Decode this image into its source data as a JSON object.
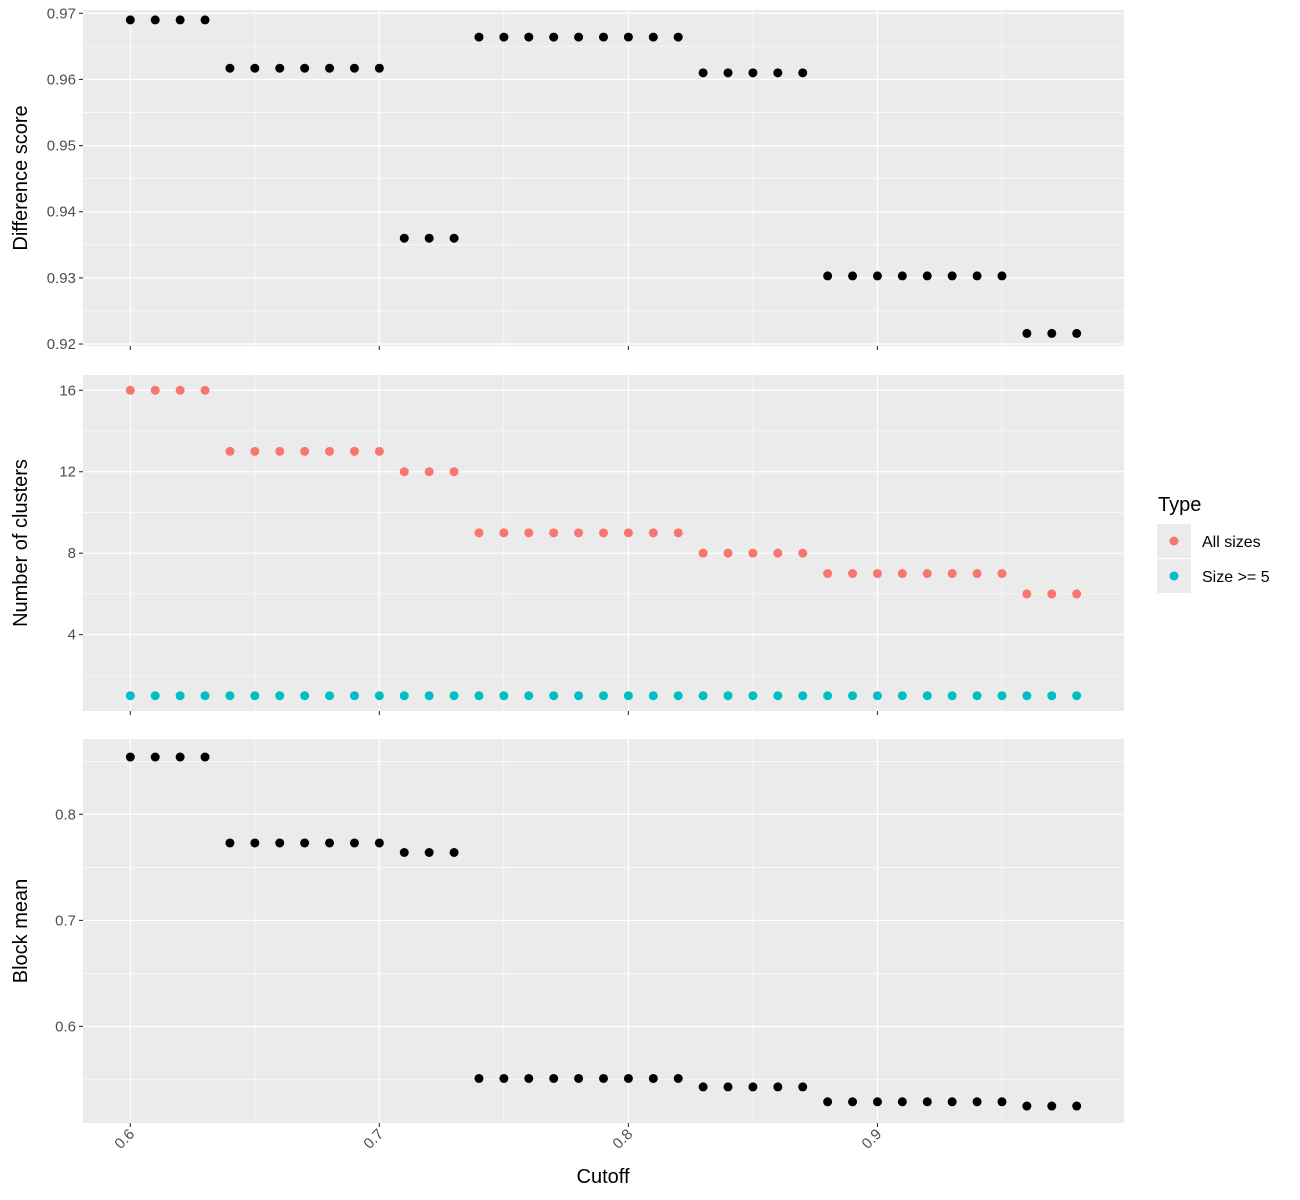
{
  "chart_data": {
    "type": "scatter",
    "xlabel": "Cutoff",
    "x_ticks": [
      0.6,
      0.7,
      0.8,
      0.9
    ],
    "x_tick_labels": [
      "0.6",
      "0.7",
      "0.8",
      "0.9"
    ],
    "xlim": [
      0.581,
      0.999
    ],
    "x": [
      0.6,
      0.61,
      0.62,
      0.63,
      0.64,
      0.65,
      0.66,
      0.67,
      0.68,
      0.69,
      0.7,
      0.71,
      0.72,
      0.73,
      0.74,
      0.75,
      0.76,
      0.77,
      0.78,
      0.79,
      0.8,
      0.81,
      0.82,
      0.83,
      0.84,
      0.85,
      0.86,
      0.87,
      0.88,
      0.89,
      0.9,
      0.91,
      0.92,
      0.93,
      0.94,
      0.95,
      0.96,
      0.97,
      0.98
    ],
    "legend": {
      "title": "Type",
      "position": "right",
      "entries": [
        {
          "label": "All sizes",
          "color": "#F8766D"
        },
        {
          "label": "Size >= 5",
          "color": "#00BFC4"
        }
      ]
    },
    "panels": [
      {
        "ylabel": "Difference score",
        "ylim": [
          0.9197,
          0.9705
        ],
        "y_ticks": [
          0.92,
          0.93,
          0.94,
          0.95,
          0.96,
          0.97
        ],
        "y_tick_labels": [
          "0.92",
          "0.93",
          "0.94",
          "0.95",
          "0.96",
          "0.97"
        ],
        "series": [
          {
            "color": "#000000",
            "values": [
              0.969,
              0.969,
              0.969,
              0.969,
              0.9617,
              0.9617,
              0.9617,
              0.9617,
              0.9617,
              0.9617,
              0.9617,
              0.936,
              0.936,
              0.936,
              0.9664,
              0.9664,
              0.9664,
              0.9664,
              0.9664,
              0.9664,
              0.9664,
              0.9664,
              0.9664,
              0.961,
              0.961,
              0.961,
              0.961,
              0.961,
              0.9303,
              0.9303,
              0.9303,
              0.9303,
              0.9303,
              0.9303,
              0.9303,
              0.9303,
              0.9216,
              0.9216,
              0.9216
            ]
          }
        ]
      },
      {
        "ylabel": "Number of clusters",
        "ylim": [
          0.25,
          16.75
        ],
        "y_ticks": [
          4,
          8,
          12,
          16
        ],
        "y_tick_labels": [
          "4",
          "8",
          "12",
          "16"
        ],
        "series": [
          {
            "name": "All sizes",
            "color": "#F8766D",
            "values": [
              16,
              16,
              16,
              16,
              13,
              13,
              13,
              13,
              13,
              13,
              13,
              12,
              12,
              12,
              9,
              9,
              9,
              9,
              9,
              9,
              9,
              9,
              9,
              8,
              8,
              8,
              8,
              8,
              7,
              7,
              7,
              7,
              7,
              7,
              7,
              7,
              6,
              6,
              6
            ]
          },
          {
            "name": "Size >= 5",
            "color": "#00BFC4",
            "values": [
              1,
              1,
              1,
              1,
              1,
              1,
              1,
              1,
              1,
              1,
              1,
              1,
              1,
              1,
              1,
              1,
              1,
              1,
              1,
              1,
              1,
              1,
              1,
              1,
              1,
              1,
              1,
              1,
              1,
              1,
              1,
              1,
              1,
              1,
              1,
              1,
              1,
              1,
              1
            ]
          }
        ]
      },
      {
        "ylabel": "Block mean",
        "ylim": [
          0.509,
          0.871
        ],
        "y_ticks": [
          0.6,
          0.7,
          0.8
        ],
        "y_tick_labels": [
          "0.6",
          "0.7",
          "0.8"
        ],
        "series": [
          {
            "color": "#000000",
            "values": [
              0.854,
              0.854,
              0.854,
              0.854,
              0.773,
              0.773,
              0.773,
              0.773,
              0.773,
              0.773,
              0.773,
              0.764,
              0.764,
              0.764,
              0.551,
              0.551,
              0.551,
              0.551,
              0.551,
              0.551,
              0.551,
              0.551,
              0.551,
              0.543,
              0.543,
              0.543,
              0.543,
              0.543,
              0.529,
              0.529,
              0.529,
              0.529,
              0.529,
              0.529,
              0.529,
              0.529,
              0.525,
              0.525,
              0.525
            ]
          }
        ]
      }
    ]
  }
}
